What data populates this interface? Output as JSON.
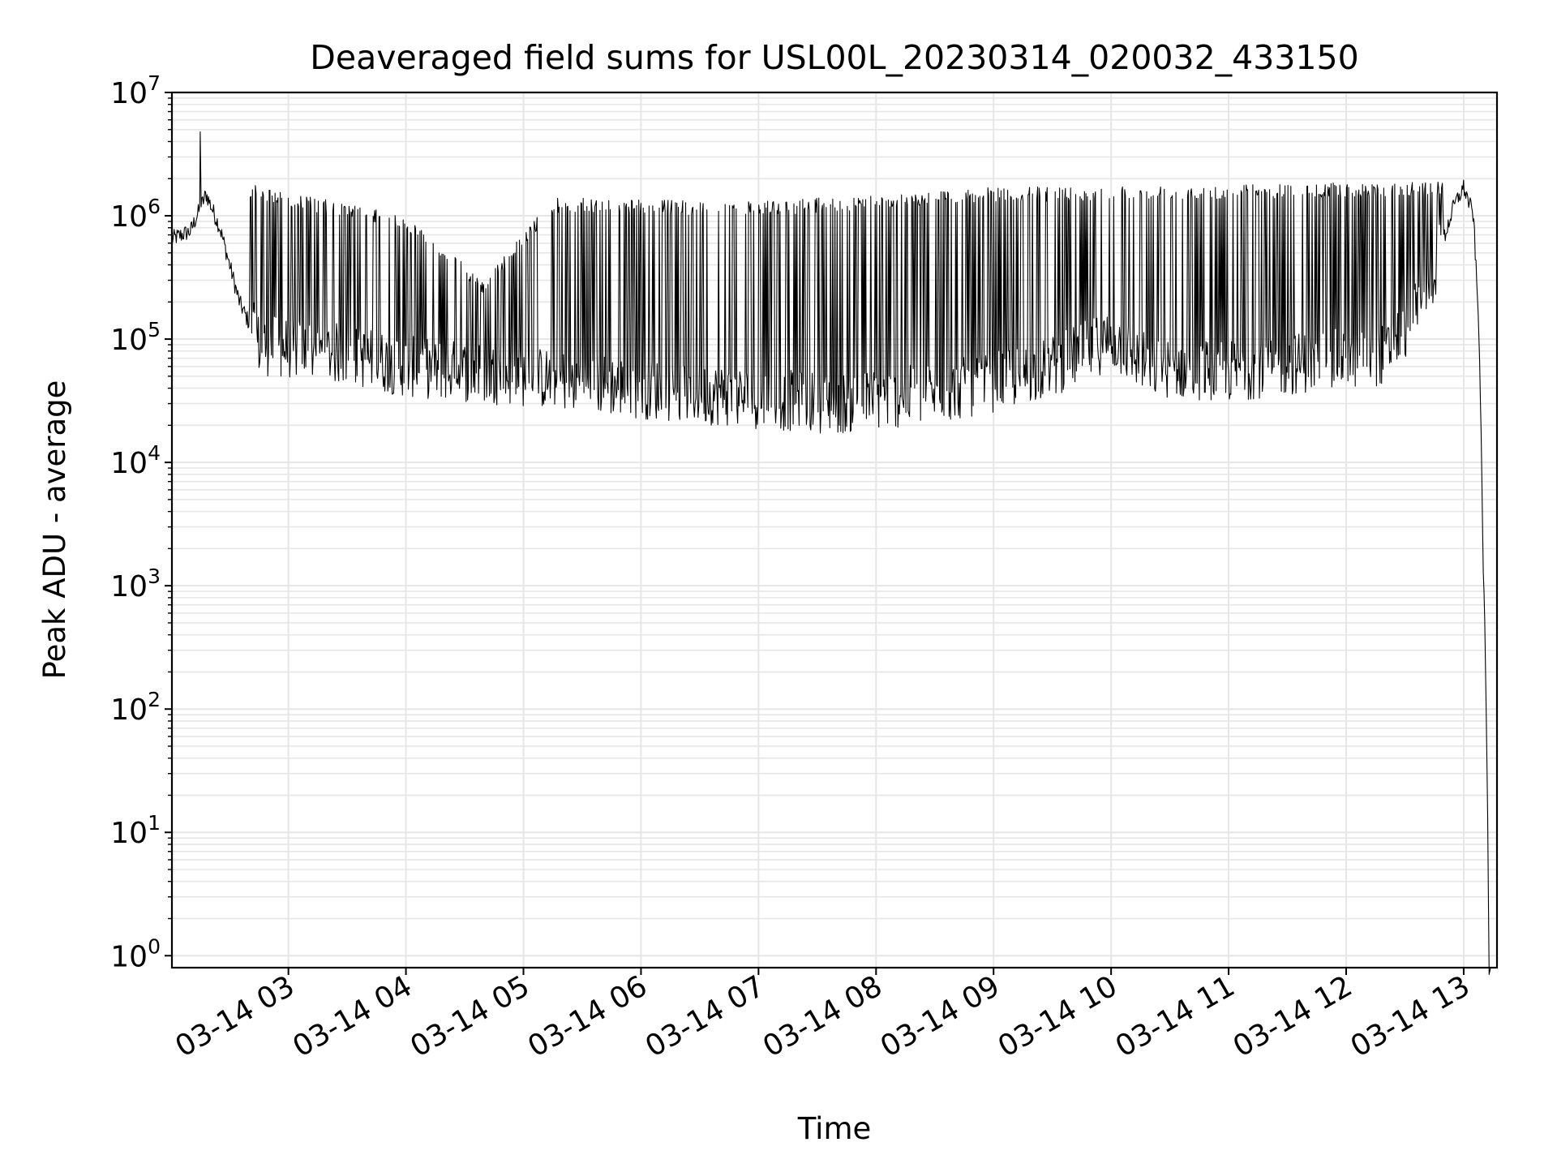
{
  "chart_data": {
    "type": "line",
    "title": "Deaveraged field sums for USL00L_20230314_020032_433150",
    "xlabel": "Time",
    "ylabel": "Peak ADU - average",
    "yscale": "log",
    "ylim": [
      0.8,
      10000000
    ],
    "xlim": [
      "2023-03-14T02:00:32",
      "2023-03-14T13:17:00"
    ],
    "x_ticks": [
      {
        "label": "03-14 03",
        "t": "2023-03-14T03:00"
      },
      {
        "label": "03-14 04",
        "t": "2023-03-14T04:00"
      },
      {
        "label": "03-14 05",
        "t": "2023-03-14T05:00"
      },
      {
        "label": "03-14 06",
        "t": "2023-03-14T06:00"
      },
      {
        "label": "03-14 07",
        "t": "2023-03-14T07:00"
      },
      {
        "label": "03-14 08",
        "t": "2023-03-14T08:00"
      },
      {
        "label": "03-14 09",
        "t": "2023-03-14T09:00"
      },
      {
        "label": "03-14 10",
        "t": "2023-03-14T10:00"
      },
      {
        "label": "03-14 11",
        "t": "2023-03-14T11:00"
      },
      {
        "label": "03-14 12",
        "t": "2023-03-14T12:00"
      },
      {
        "label": "03-14 13",
        "t": "2023-03-14T13:00"
      }
    ],
    "y_ticks": [
      {
        "base": "10",
        "exp": "0",
        "value": 1
      },
      {
        "base": "10",
        "exp": "1",
        "value": 10
      },
      {
        "base": "10",
        "exp": "2",
        "value": 100
      },
      {
        "base": "10",
        "exp": "3",
        "value": 1000
      },
      {
        "base": "10",
        "exp": "4",
        "value": 10000
      },
      {
        "base": "10",
        "exp": "5",
        "value": 100000
      },
      {
        "base": "10",
        "exp": "6",
        "value": 1000000
      },
      {
        "base": "10",
        "exp": "7",
        "value": 10000000
      }
    ],
    "grid": true,
    "line_color": "#000000",
    "grid_color": "#e6e6e6",
    "series": [
      {
        "baseline_profile": [
          {
            "t": "2023-03-14T02:00:32",
            "y": 650000
          },
          {
            "t": "2023-03-14T02:10",
            "y": 750000
          },
          {
            "t": "2023-03-14T02:18",
            "y": 1500000
          },
          {
            "t": "2023-03-14T02:25",
            "y": 800000
          },
          {
            "t": "2023-03-14T02:35",
            "y": 200000
          },
          {
            "t": "2023-03-14T02:45",
            "y": 90000
          },
          {
            "t": "2023-03-14T03:30",
            "y": 75000
          },
          {
            "t": "2023-03-14T04:00",
            "y": 60000
          },
          {
            "t": "2023-03-14T05:00",
            "y": 50000
          },
          {
            "t": "2023-03-14T06:00",
            "y": 40000
          },
          {
            "t": "2023-03-14T07:00",
            "y": 33000
          },
          {
            "t": "2023-03-14T07:40",
            "y": 30000
          },
          {
            "t": "2023-03-14T08:30",
            "y": 36000
          },
          {
            "t": "2023-03-14T09:00",
            "y": 45000
          },
          {
            "t": "2023-03-14T09:30",
            "y": 60000
          },
          {
            "t": "2023-03-14T10:00",
            "y": 100000
          },
          {
            "t": "2023-03-14T10:20",
            "y": 60000
          },
          {
            "t": "2023-03-14T11:00",
            "y": 55000
          },
          {
            "t": "2023-03-14T11:40",
            "y": 65000
          },
          {
            "t": "2023-03-14T12:20",
            "y": 75000
          },
          {
            "t": "2023-03-14T12:40",
            "y": 200000
          },
          {
            "t": "2023-03-14T12:55",
            "y": 1200000
          },
          {
            "t": "2023-03-14T13:00",
            "y": 1700000
          },
          {
            "t": "2023-03-14T13:05",
            "y": 1000000
          },
          {
            "t": "2023-03-14T13:08",
            "y": 100000
          },
          {
            "t": "2023-03-14T13:10",
            "y": 1500
          },
          {
            "t": "2023-03-14T13:11",
            "y": 300
          },
          {
            "t": "2023-03-14T13:12",
            "y": 30
          },
          {
            "t": "2023-03-14T13:13",
            "y": 0.8
          }
        ],
        "spike_envelope": [
          {
            "t": "2023-03-14T02:40",
            "y": 1800000
          },
          {
            "t": "2023-03-14T04:00",
            "y": 1000000
          },
          {
            "t": "2023-03-14T04:40",
            "y": 300000
          },
          {
            "t": "2023-03-14T05:15",
            "y": 1400000
          },
          {
            "t": "2023-03-14T07:00",
            "y": 1300000
          },
          {
            "t": "2023-03-14T09:00",
            "y": 1700000
          },
          {
            "t": "2023-03-14T12:50",
            "y": 1900000
          }
        ],
        "peak_max": {
          "t": "2023-03-14T02:15",
          "y": 4800000
        }
      }
    ]
  }
}
